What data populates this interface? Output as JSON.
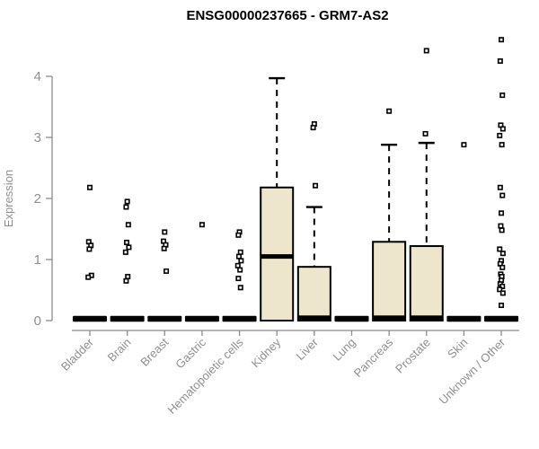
{
  "chart_data": {
    "type": "boxplot",
    "title": "ENSG00000237665 - GRM7-AS2",
    "ylabel": "Expression",
    "xlabel": "",
    "ylim": [
      0,
      4.7
    ],
    "yticks": [
      0,
      1,
      2,
      3,
      4
    ],
    "grid": false,
    "legend": "none",
    "categories": [
      "Bladder",
      "Brain",
      "Breast",
      "Gastric",
      "Hematopoietic cells",
      "Kidney",
      "Liver",
      "Lung",
      "Pancreas",
      "Prostate",
      "Skin",
      "Unknown / Other"
    ],
    "series": [
      {
        "category": "Bladder",
        "q1": 0,
        "median": 0,
        "q3": 0,
        "whisker_low": 0,
        "whisker_high": 0,
        "points": [
          2.18,
          1.29,
          1.23,
          1.17,
          0.74,
          0.71
        ]
      },
      {
        "category": "Brain",
        "q1": 0,
        "median": 0,
        "q3": 0,
        "whisker_low": 0,
        "whisker_high": 0,
        "points": [
          1.95,
          1.86,
          1.57,
          1.28,
          1.2,
          1.12,
          0.72,
          0.65
        ]
      },
      {
        "category": "Breast",
        "q1": 0,
        "median": 0,
        "q3": 0,
        "whisker_low": 0,
        "whisker_high": 0,
        "points": [
          1.45,
          1.3,
          1.24,
          1.18,
          0.81
        ]
      },
      {
        "category": "Gastric",
        "q1": 0,
        "median": 0,
        "q3": 0,
        "whisker_low": 0,
        "whisker_high": 0,
        "points": [
          1.57
        ]
      },
      {
        "category": "Hematopoietic cells",
        "q1": 0,
        "median": 0,
        "q3": 0,
        "whisker_low": 0,
        "whisker_high": 0,
        "points": [
          1.45,
          1.4,
          1.12,
          1.05,
          0.98,
          0.9,
          0.83,
          0.69,
          0.54
        ]
      },
      {
        "category": "Kidney",
        "q1": 0,
        "median": 1.05,
        "q3": 2.18,
        "whisker_low": 0,
        "whisker_high": 3.97,
        "points": []
      },
      {
        "category": "Liver",
        "q1": 0,
        "median": 0,
        "q3": 0.88,
        "whisker_low": 0,
        "whisker_high": 1.86,
        "points": [
          3.22,
          3.16,
          2.21
        ]
      },
      {
        "category": "Lung",
        "q1": 0,
        "median": 0,
        "q3": 0,
        "whisker_low": 0,
        "whisker_high": 0,
        "points": []
      },
      {
        "category": "Pancreas",
        "q1": 0,
        "median": 0,
        "q3": 1.29,
        "whisker_low": 0,
        "whisker_high": 2.88,
        "points": [
          3.43
        ]
      },
      {
        "category": "Prostate",
        "q1": 0,
        "median": 0,
        "q3": 1.22,
        "whisker_low": 0,
        "whisker_high": 2.91,
        "points": [
          4.42,
          3.06
        ]
      },
      {
        "category": "Skin",
        "q1": 0,
        "median": 0,
        "q3": 0,
        "whisker_low": 0,
        "whisker_high": 0,
        "points": [
          2.88
        ]
      },
      {
        "category": "Unknown / Other",
        "q1": 0,
        "median": 0,
        "q3": 0,
        "whisker_low": 0,
        "whisker_high": 0,
        "points": [
          4.6,
          4.25,
          3.69,
          3.2,
          3.14,
          3.03,
          2.88,
          2.18,
          2.05,
          1.76,
          1.55,
          1.48,
          1.17,
          1.1,
          0.98,
          0.93,
          0.87,
          0.76,
          0.72,
          0.66,
          0.6,
          0.56,
          0.51,
          0.45,
          0.25
        ]
      }
    ],
    "colors": {
      "box_fill": "#EDE6CC",
      "box_stroke": "#000000",
      "median": "#000000",
      "point_stroke": "#000000",
      "point_fill": "#FFFFFF",
      "axis": "#8C8C8C",
      "tick_label": "#8F8F8F",
      "title": "#000000",
      "background": "#FFFFFF"
    }
  }
}
